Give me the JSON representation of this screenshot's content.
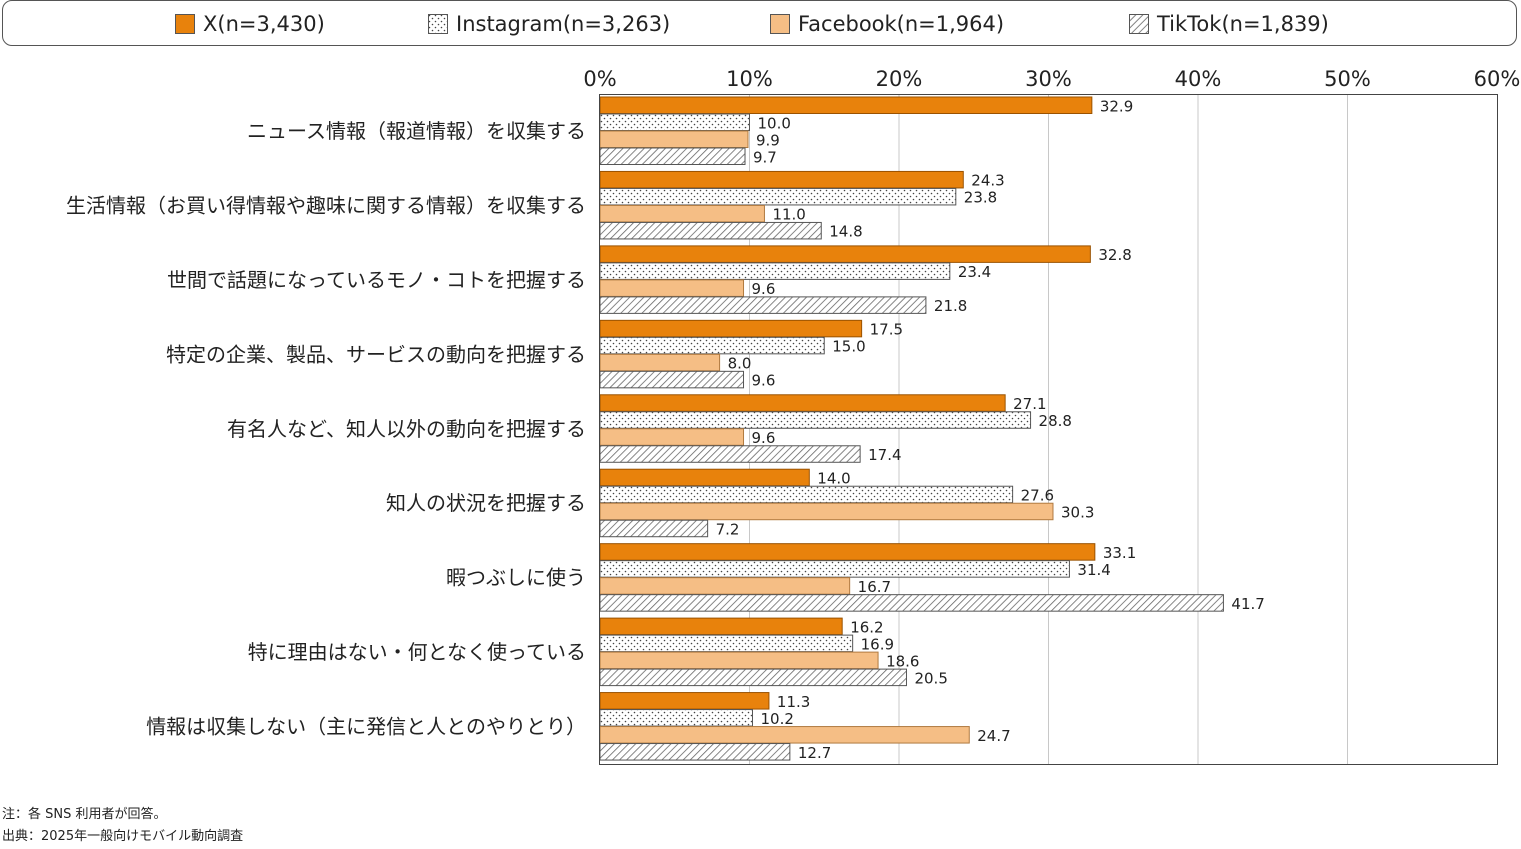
{
  "legend": [
    {
      "label": "X(n=3,430)",
      "pattern": "solid",
      "color": "#E8820C"
    },
    {
      "label": "Instagram(n=3,263)",
      "pattern": "dots",
      "color": "#ffffff"
    },
    {
      "label": "Facebook(n=1,964)",
      "pattern": "solid",
      "color": "#F5BE85"
    },
    {
      "label": "TikTok(n=1,839)",
      "pattern": "diagonal",
      "color": "#ffffff"
    }
  ],
  "chart_data": {
    "type": "bar",
    "orientation": "horizontal",
    "xlim": [
      0,
      60
    ],
    "x_ticks": [
      "0%",
      "10%",
      "20%",
      "30%",
      "40%",
      "50%",
      "60%"
    ],
    "grid": true,
    "legend_position": "top",
    "categories": [
      "ニュース情報（報道情報）を収集する",
      "生活情報（お買い得情報や趣味に関する情報）を収集する",
      "世間で話題になっているモノ・コトを把握する",
      "特定の企業、製品、サービスの動向を把握する",
      "有名人など、知人以外の動向を把握する",
      "知人の状況を把握する",
      "暇つぶしに使う",
      "特に理由はない・何となく使っている",
      "情報は収集しない（主に発信と人とのやりとり）"
    ],
    "series": [
      {
        "name": "X(n=3,430)",
        "values": [
          32.9,
          24.3,
          32.8,
          17.5,
          27.1,
          14.0,
          33.1,
          16.2,
          11.3
        ],
        "labels": [
          "32.9",
          "24.3",
          "32.8",
          "17.5",
          "27.1",
          "14.0",
          "33.1",
          "16.2",
          "11.3"
        ]
      },
      {
        "name": "Instagram(n=3,263)",
        "values": [
          10.0,
          23.8,
          23.4,
          15.0,
          28.8,
          27.6,
          31.4,
          16.9,
          10.2
        ],
        "labels": [
          "10.0",
          "23.8",
          "23.4",
          "15.0",
          "28.8",
          "27.6",
          "31.4",
          "16.9",
          "10.2"
        ]
      },
      {
        "name": "Facebook(n=1,964)",
        "values": [
          9.9,
          11.0,
          9.6,
          8.0,
          9.6,
          30.3,
          16.7,
          18.6,
          24.7
        ],
        "labels": [
          "9.9",
          "11.0",
          "9.6",
          "8.0",
          "9.6",
          "30.3",
          "16.7",
          "18.6",
          "24.7"
        ]
      },
      {
        "name": "TikTok(n=1,839)",
        "values": [
          9.7,
          14.8,
          21.8,
          9.6,
          17.4,
          7.2,
          41.7,
          20.5,
          12.7
        ],
        "labels": [
          "9.7",
          "14.8",
          "21.8",
          "9.6",
          "17.4",
          "7.2",
          "41.7",
          "20.5",
          "12.7"
        ]
      }
    ]
  },
  "notes": {
    "note1": "注：各 SNS 利用者が回答。",
    "note2": "出典：2025年一般向けモバイル動向調査"
  }
}
